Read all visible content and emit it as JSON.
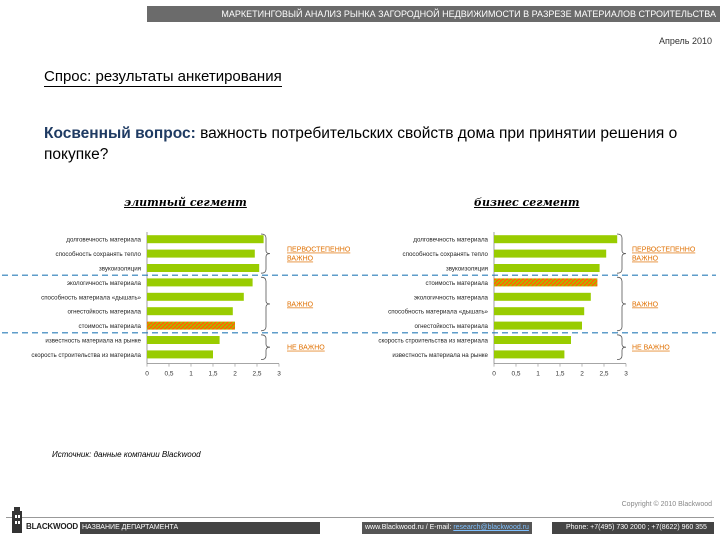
{
  "header": {
    "title": "МАРКЕТИНГОВЫЙ АНАЛИЗ РЫНКА ЗАГОРОДНОЙ НЕДВИЖИМОСТИ В РАЗРЕЗЕ МАТЕРИАЛОВ СТРОИТЕЛЬСТВА",
    "date": "Апрель 2010"
  },
  "section_title": "Спрос: результаты анкетирования",
  "question": {
    "bold": "Косвенный вопрос:",
    "text": " важность потребительских свойств дома при принятии решения о покупке?"
  },
  "colors": {
    "bar": "#99cc00",
    "bar_highlight": "#ff6600",
    "bracket_label": "#e07000",
    "divider": "#2a7db8",
    "axis": "#888888"
  },
  "chart_data": [
    {
      "type": "bar",
      "orientation": "horizontal",
      "title": "элитный сегмент",
      "categories": [
        "долговечность материала",
        "способность сохранять тепло",
        "звукоизоляция",
        "экологичность материала",
        "способность материала «дышать»",
        "огнестойкость материала",
        "стоимость материала",
        "известность материала на рынке",
        "скорость строительства из материала"
      ],
      "values": [
        2.65,
        2.45,
        2.55,
        2.4,
        2.2,
        1.95,
        2.0,
        1.65,
        1.5
      ],
      "highlight": [
        6
      ],
      "xlim": [
        0,
        3
      ],
      "xticks": [
        "0",
        "0,5",
        "1",
        "1,5",
        "2",
        "2,5",
        "3"
      ],
      "groups": [
        {
          "label": "ПЕРВОСТЕПЕННО ВАЖНО",
          "from": 0,
          "to": 2
        },
        {
          "label": "ВАЖНО",
          "from": 3,
          "to": 6
        },
        {
          "label": "НЕ ВАЖНО",
          "from": 7,
          "to": 8
        }
      ]
    },
    {
      "type": "bar",
      "orientation": "horizontal",
      "title": "бизнес сегмент",
      "categories": [
        "долговечность материала",
        "способность сохранять тепло",
        "звукоизоляция",
        "стоимость материала",
        "экологичность материала",
        "способность материала «дышать»",
        "огнестойкость материала",
        "скорость строительства из материала",
        "известность материала на рынке"
      ],
      "values": [
        2.8,
        2.55,
        2.4,
        2.35,
        2.2,
        2.05,
        2.0,
        1.75,
        1.6
      ],
      "highlight": [
        3
      ],
      "xlim": [
        0,
        3
      ],
      "xticks": [
        "0",
        "0,5",
        "1",
        "1,5",
        "2",
        "2,5",
        "3"
      ],
      "groups": [
        {
          "label": "ПЕРВОСТЕПЕННО ВАЖНО",
          "from": 0,
          "to": 2
        },
        {
          "label": "ВАЖНО",
          "from": 3,
          "to": 6
        },
        {
          "label": "НЕ ВАЖНО",
          "from": 7,
          "to": 8
        }
      ]
    }
  ],
  "source": "Источник: данные компании Blackwood",
  "footer": {
    "copyright": "Copyright © 2010 Blackwood",
    "logo": "BLACKWOOD",
    "department": "НАЗВАНИЕ ДЕПАРТАМЕНТА",
    "web": "www.Blackwood.ru  /  E-mail: ",
    "email": "research@blackwood.ru",
    "phones": "Phone: +7(495) 730 2000 ;  +7(8622) 960 355"
  }
}
